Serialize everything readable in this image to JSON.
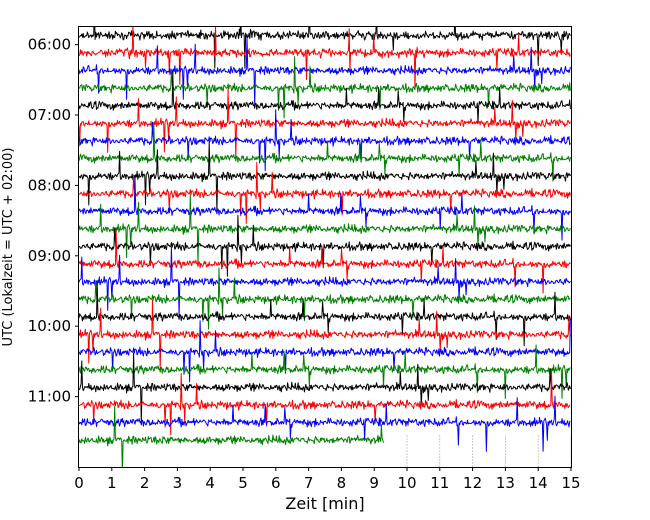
{
  "chart_data": {
    "type": "line",
    "title": "",
    "xlabel": "Zeit  [min]",
    "ylabel": "UTC (Lokalzeit = UTC + 02:00)",
    "xlim": [
      0,
      15
    ],
    "x_ticks": [
      "0",
      "1",
      "2",
      "3",
      "4",
      "5",
      "6",
      "7",
      "8",
      "9",
      "10",
      "11",
      "12",
      "13",
      "14",
      "15"
    ],
    "y_ticks": [
      "06:00",
      "07:00",
      "08:00",
      "09:00",
      "10:00",
      "11:00"
    ],
    "time_start": "05:45",
    "time_end": "12:00",
    "trace_interval_min": 15,
    "grid": false,
    "legend": "none",
    "colors": [
      "#000000",
      "#ff0000",
      "#0000ff",
      "#008000"
    ],
    "traces": [
      {
        "start": "05:45",
        "color": "#000000",
        "end_min": 15
      },
      {
        "start": "06:00",
        "color": "#ff0000",
        "end_min": 15
      },
      {
        "start": "06:15",
        "color": "#0000ff",
        "end_min": 15
      },
      {
        "start": "06:30",
        "color": "#008000",
        "end_min": 15
      },
      {
        "start": "06:45",
        "color": "#000000",
        "end_min": 15
      },
      {
        "start": "07:00",
        "color": "#ff0000",
        "end_min": 15
      },
      {
        "start": "07:15",
        "color": "#0000ff",
        "end_min": 15
      },
      {
        "start": "07:30",
        "color": "#008000",
        "end_min": 15
      },
      {
        "start": "07:45",
        "color": "#000000",
        "end_min": 15
      },
      {
        "start": "08:00",
        "color": "#ff0000",
        "end_min": 15
      },
      {
        "start": "08:15",
        "color": "#0000ff",
        "end_min": 15
      },
      {
        "start": "08:30",
        "color": "#008000",
        "end_min": 15
      },
      {
        "start": "08:45",
        "color": "#000000",
        "end_min": 15
      },
      {
        "start": "09:00",
        "color": "#ff0000",
        "end_min": 15
      },
      {
        "start": "09:15",
        "color": "#0000ff",
        "end_min": 15
      },
      {
        "start": "09:30",
        "color": "#008000",
        "end_min": 15
      },
      {
        "start": "09:45",
        "color": "#000000",
        "end_min": 15
      },
      {
        "start": "10:00",
        "color": "#ff0000",
        "end_min": 15
      },
      {
        "start": "10:15",
        "color": "#0000ff",
        "end_min": 15
      },
      {
        "start": "10:30",
        "color": "#008000",
        "end_min": 15
      },
      {
        "start": "10:45",
        "color": "#000000",
        "end_min": 15
      },
      {
        "start": "11:00",
        "color": "#ff0000",
        "end_min": 15
      },
      {
        "start": "11:15",
        "color": "#0000ff",
        "end_min": 15
      },
      {
        "start": "11:30",
        "color": "#008000",
        "end_min": 9.3
      }
    ]
  }
}
